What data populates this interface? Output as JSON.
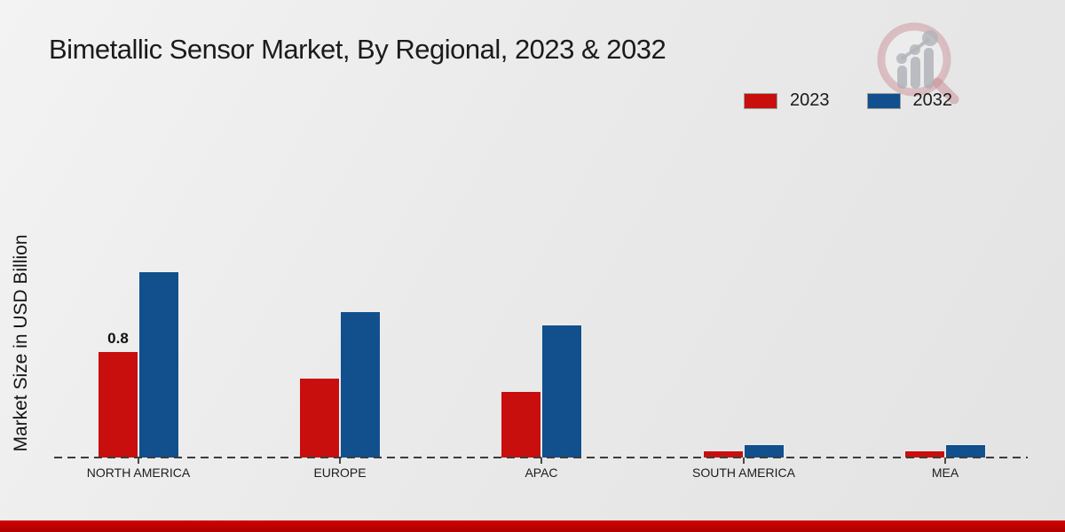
{
  "page": {
    "title": "Bimetallic Sensor Market, By Regional, 2023 & 2032"
  },
  "ylabel": "Market Size in USD Billion",
  "chart_data": {
    "type": "bar",
    "title": "Bimetallic Sensor Market, By Regional, 2023 & 2032",
    "xlabel": "",
    "ylabel": "Market Size in USD Billion",
    "units": "USD Billion",
    "categories": [
      "NORTH AMERICA",
      "EUROPE",
      "APAC",
      "SOUTH AMERICA",
      "MEA"
    ],
    "series": [
      {
        "name": "2023",
        "color": "#c90f0e",
        "values": [
          0.8,
          0.6,
          0.5,
          0.05,
          0.05
        ]
      },
      {
        "name": "2032",
        "color": "#11508d",
        "values": [
          1.4,
          1.1,
          1.0,
          0.1,
          0.1
        ]
      }
    ],
    "data_labels": [
      {
        "series": "2023",
        "category": "NORTH AMERICA",
        "text": "0.8"
      }
    ],
    "ylim": [
      0,
      1.5
    ],
    "grid": "off",
    "baseline_style": "dashed",
    "legend_position": "top-right"
  },
  "colors": {
    "footer_bar": "#c00000",
    "background_top": "#f3f3f3",
    "background_bottom": "#e3e3e3",
    "baseline": "#3c3c3c"
  },
  "watermark": {
    "name": "market-research-chart-logo"
  }
}
